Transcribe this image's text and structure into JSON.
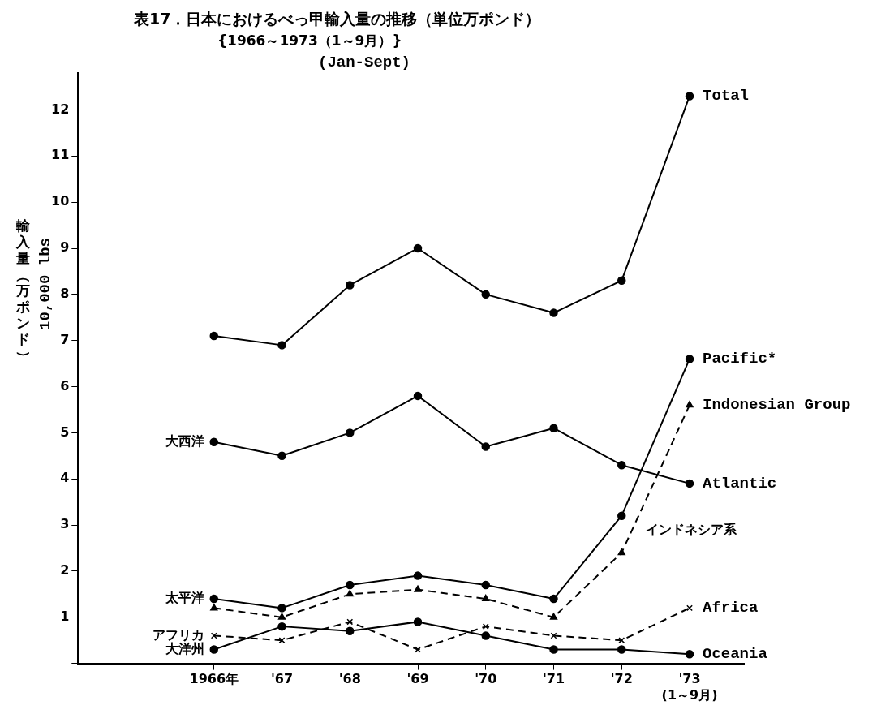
{
  "chart_data": {
    "type": "line",
    "title": "表17．日本におけるべっ甲輸入量の推移（単位万ポンド）",
    "subtitle": "{1966～1973（1～9月）}\n(Jan-Sept)",
    "ylabel": "輸入量（万ポンド）\n10,000 lbs",
    "categories": [
      "1966年",
      "'67",
      "'68",
      "'69",
      "'70",
      "'71",
      "'72",
      "'73\n(1～9月)"
    ],
    "ylim": [
      0,
      12.8
    ],
    "yticks": [
      {
        "value": 0,
        "label": null
      },
      1,
      2,
      3,
      4,
      5,
      6,
      7,
      8,
      9,
      10,
      11,
      12
    ],
    "grid": false,
    "legend": false,
    "series": [
      {
        "name": "Total",
        "color": "#000000",
        "marker": "circle",
        "line_style": "solid",
        "values": [
          7.1,
          6.9,
          8.2,
          9.0,
          8.0,
          7.6,
          8.3,
          12.3
        ]
      },
      {
        "name": "Atlantic",
        "color": "#000000",
        "marker": "circle",
        "line_style": "solid",
        "values": [
          4.8,
          4.5,
          5.0,
          5.8,
          4.7,
          5.1,
          4.3,
          3.9
        ]
      },
      {
        "name": "Pacific*",
        "color": "#000000",
        "marker": "circle",
        "line_style": "solid",
        "values": [
          1.4,
          1.2,
          1.7,
          1.9,
          1.7,
          1.4,
          3.2,
          6.6
        ]
      },
      {
        "name": "Indonesian Group",
        "color": "#000000",
        "marker": "triangle",
        "line_style": "dashed",
        "values": [
          1.2,
          1.0,
          1.5,
          1.6,
          1.4,
          1.0,
          2.4,
          5.6
        ]
      },
      {
        "name": "Africa",
        "color": "#000000",
        "marker": "cross",
        "line_style": "dashed",
        "values": [
          0.6,
          0.5,
          0.9,
          0.3,
          0.8,
          0.6,
          0.5,
          1.2
        ]
      },
      {
        "name": "Oceania",
        "color": "#000000",
        "marker": "circle",
        "line_style": "solid",
        "values": [
          0.3,
          0.8,
          0.7,
          0.9,
          0.6,
          0.3,
          0.3,
          0.2
        ]
      }
    ],
    "annotations": [
      {
        "text": "大西洋",
        "x": "1966年",
        "y": 4.8
      },
      {
        "text": "太平洋",
        "x": "1966年",
        "y": 1.4
      },
      {
        "text": "アフリカ",
        "x": "1966年",
        "y": 0.6
      },
      {
        "text": "大洋州",
        "x": "1966年",
        "y": 0.3
      },
      "インドネシア系"
    ]
  }
}
